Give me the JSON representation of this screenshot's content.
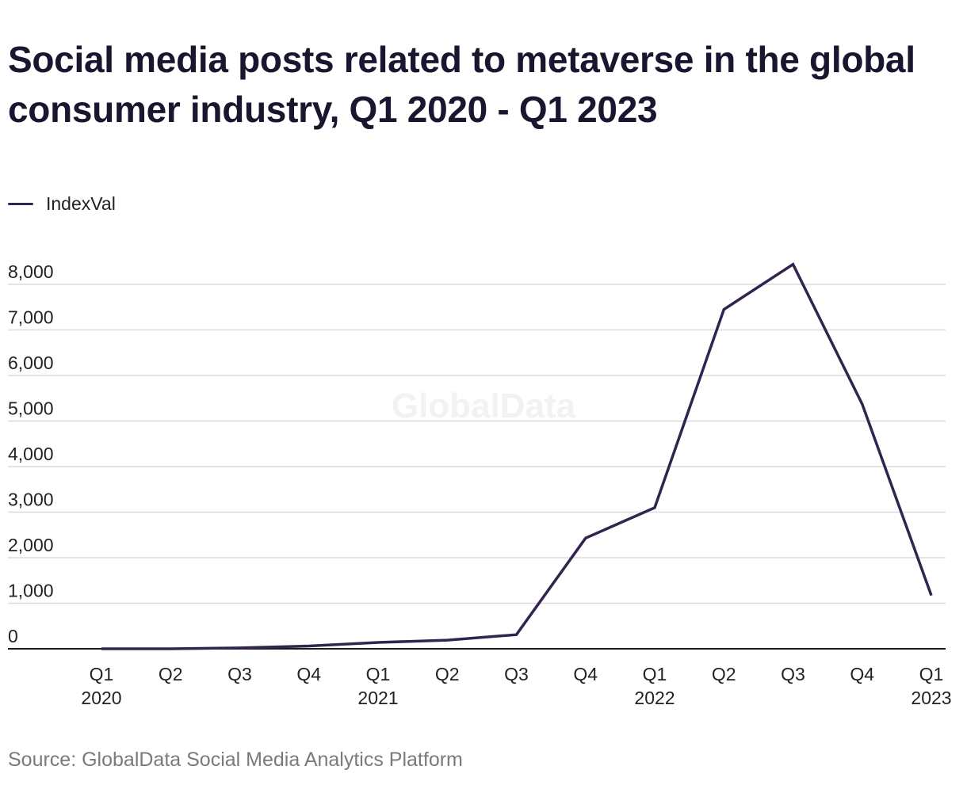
{
  "chart_data": {
    "type": "line",
    "title": "Social media posts related to metaverse in the global consumer industry, Q1 2020 - Q1 2023",
    "watermark": "GlobalData",
    "source": "Source: GlobalData Social Media Analytics Platform",
    "categories": [
      [
        "Q1",
        "2020"
      ],
      [
        "Q2"
      ],
      [
        "Q3"
      ],
      [
        "Q4"
      ],
      [
        "Q1",
        "2021"
      ],
      [
        "Q2"
      ],
      [
        "Q3"
      ],
      [
        "Q4"
      ],
      [
        "Q1",
        "2022"
      ],
      [
        "Q2"
      ],
      [
        "Q3"
      ],
      [
        "Q4"
      ],
      [
        "Q1",
        "2023"
      ]
    ],
    "series": [
      {
        "name": "IndexVal",
        "color": "#32244f",
        "values": [
          0,
          0,
          20,
          60,
          140,
          190,
          310,
          2430,
          3100,
          7450,
          8440,
          5370,
          1170
        ]
      }
    ],
    "y_ticks": [
      0,
      1000,
      2000,
      3000,
      4000,
      5000,
      6000,
      7000,
      8000
    ],
    "y_tick_labels": [
      "0",
      "1,000",
      "2,000",
      "3,000",
      "4,000",
      "5,000",
      "6,000",
      "7,000",
      "8,000"
    ],
    "ylim": [
      0,
      8000
    ],
    "grid": true,
    "legend_position": "top-left",
    "xlabel": "",
    "ylabel": ""
  }
}
